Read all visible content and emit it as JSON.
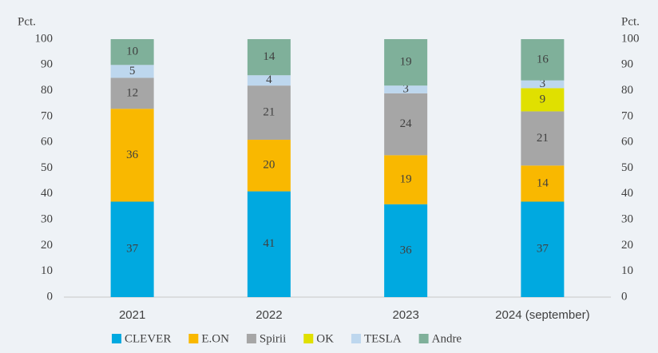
{
  "chart_data": {
    "type": "stacked_bar",
    "ylabel": "Pct.",
    "y2label": "Pct.",
    "categories": [
      "2021",
      "2022",
      "2023",
      "2024 (september)"
    ],
    "series": [
      {
        "name": "CLEVER",
        "color": "#00a9e0",
        "values": [
          37,
          41,
          36,
          37
        ]
      },
      {
        "name": "E.ON",
        "color": "#f9b800",
        "values": [
          36,
          20,
          19,
          14
        ]
      },
      {
        "name": "Spirii",
        "color": "#a6a6a6",
        "values": [
          12,
          21,
          24,
          21
        ]
      },
      {
        "name": "OK",
        "color": "#e0e000",
        "values": [
          null,
          null,
          null,
          9
        ]
      },
      {
        "name": "TESLA",
        "color": "#bdd7ee",
        "values": [
          5,
          4,
          3,
          3
        ]
      },
      {
        "name": "Andre",
        "color": "#7fb09a",
        "values": [
          10,
          14,
          19,
          16
        ]
      }
    ],
    "ylim": [
      0,
      100
    ],
    "yticks": [
      0,
      10,
      20,
      30,
      40,
      50,
      60,
      70,
      80,
      90,
      100
    ],
    "y2lim": [
      0,
      100
    ],
    "y2ticks": [
      0,
      10,
      20,
      30,
      40,
      50,
      60,
      70,
      80,
      90,
      100
    ],
    "grid": false,
    "legend": "bottom"
  }
}
